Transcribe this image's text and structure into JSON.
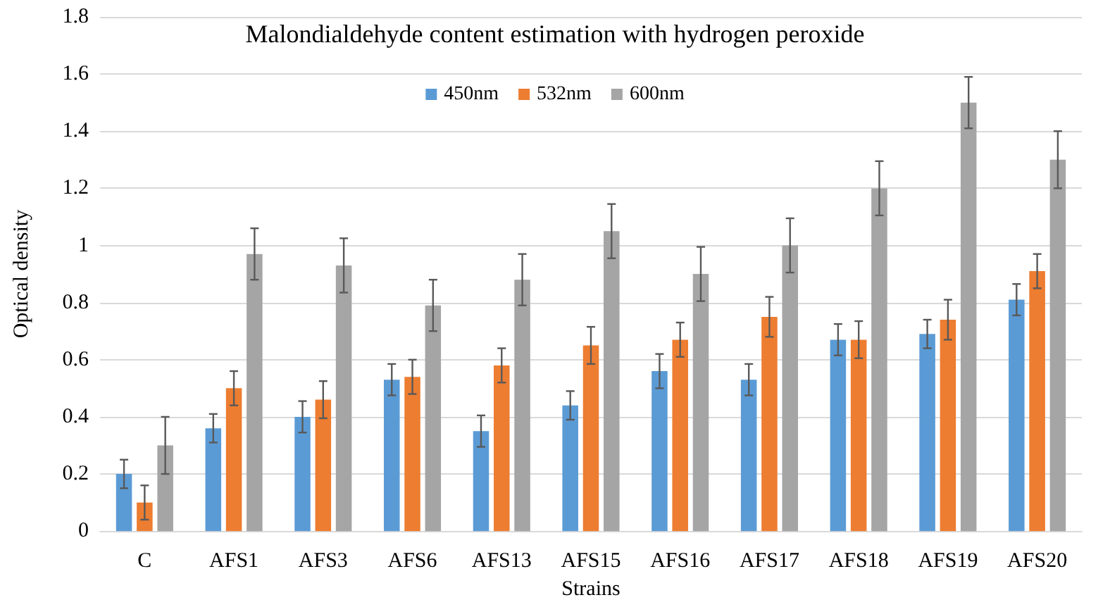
{
  "chart_data": {
    "type": "bar",
    "title": "Malondialdehyde content estimation with hydrogen peroxide",
    "xlabel": "Strains",
    "ylabel": "Optical density",
    "categories": [
      "C",
      "AFS1",
      "AFS3",
      "AFS6",
      "AFS13",
      "AFS15",
      "AFS16",
      "AFS17",
      "AFS18",
      "AFS19",
      "AFS20"
    ],
    "series": [
      {
        "name": "450nm",
        "color": "#5b9bd5",
        "values": [
          0.2,
          0.36,
          0.4,
          0.53,
          0.35,
          0.44,
          0.56,
          0.53,
          0.67,
          0.69,
          0.81
        ],
        "errors": [
          0.05,
          0.05,
          0.055,
          0.055,
          0.055,
          0.05,
          0.06,
          0.055,
          0.055,
          0.05,
          0.055
        ]
      },
      {
        "name": "532nm",
        "color": "#ed7d31",
        "values": [
          0.1,
          0.5,
          0.46,
          0.54,
          0.58,
          0.65,
          0.67,
          0.75,
          0.67,
          0.74,
          0.91
        ],
        "errors": [
          0.06,
          0.06,
          0.065,
          0.06,
          0.06,
          0.065,
          0.06,
          0.07,
          0.065,
          0.07,
          0.06
        ]
      },
      {
        "name": "600nm",
        "color": "#a5a5a5",
        "values": [
          0.3,
          0.97,
          0.93,
          0.79,
          0.88,
          1.05,
          0.9,
          1.0,
          1.2,
          1.5,
          1.3
        ],
        "errors": [
          0.1,
          0.09,
          0.095,
          0.09,
          0.09,
          0.095,
          0.095,
          0.095,
          0.095,
          0.09,
          0.1
        ]
      }
    ],
    "ylim": [
      0,
      1.8
    ],
    "yticks": [
      0,
      0.2,
      0.4,
      0.6,
      0.8,
      1,
      1.2,
      1.4,
      1.6,
      1.8
    ],
    "grid": "y",
    "legend": "top"
  }
}
